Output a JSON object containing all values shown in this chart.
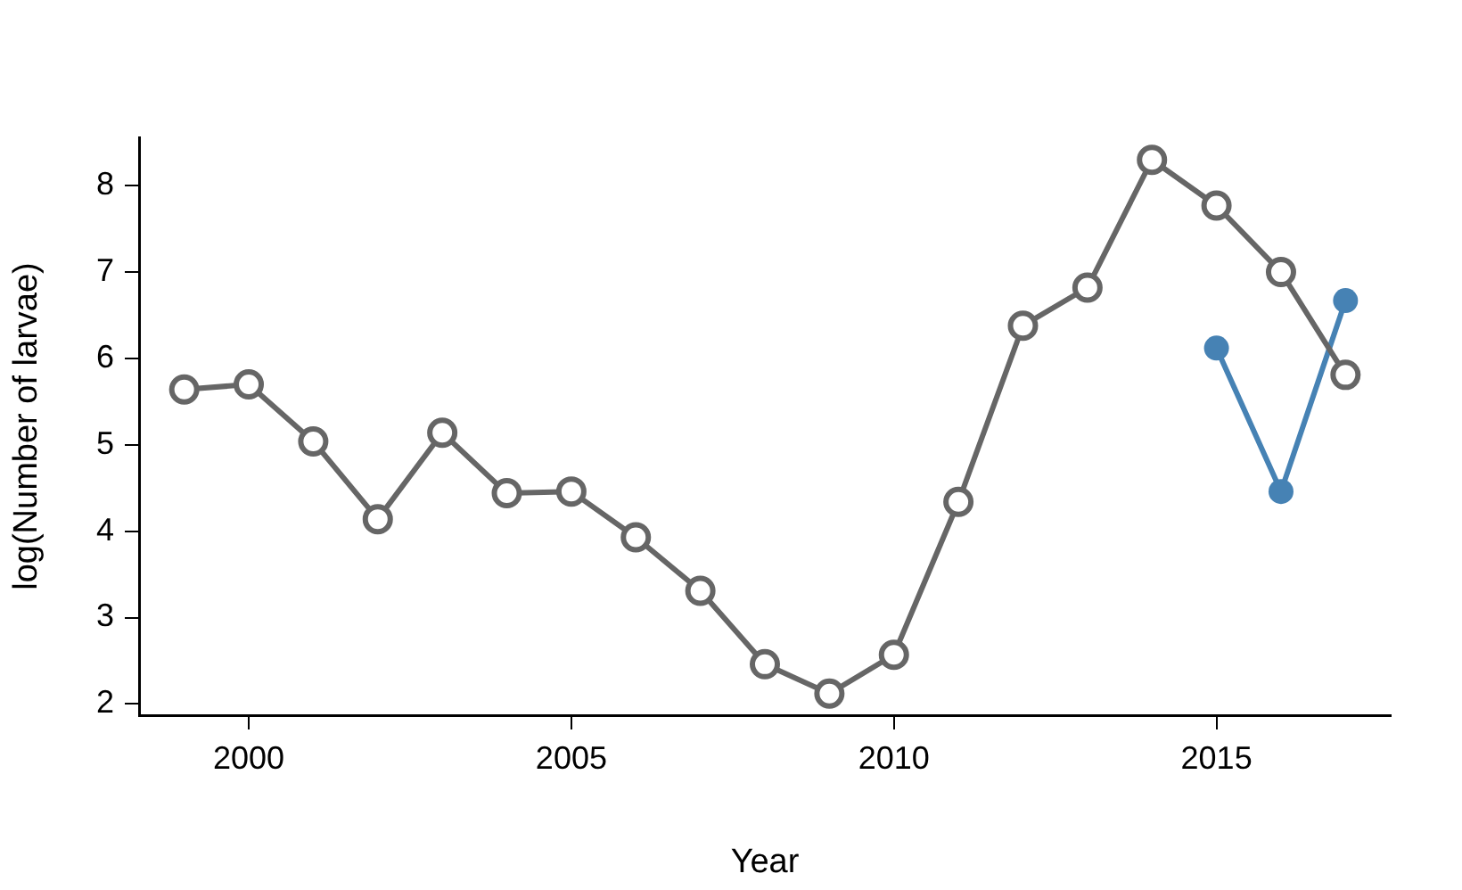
{
  "chart_data": {
    "type": "line",
    "xlabel": "Year",
    "ylabel": "log(Number of larvae)",
    "xlim": [
      1998.3,
      2017.7
    ],
    "ylim": [
      1.87,
      8.56
    ],
    "xticks": [
      2000,
      2005,
      2010,
      2015
    ],
    "yticks": [
      2,
      3,
      4,
      5,
      6,
      7,
      8
    ],
    "grid": false,
    "legend": false,
    "marker": "circle",
    "line_style": "solid",
    "series": [
      {
        "color": "#666666",
        "x": [
          1999,
          2000,
          2001,
          2002,
          2003,
          2004,
          2005,
          2006,
          2007,
          2008,
          2009,
          2010,
          2011,
          2012,
          2013,
          2014,
          2015,
          2016,
          2017
        ],
        "values": [
          5.64,
          5.7,
          5.04,
          4.14,
          5.14,
          4.44,
          4.46,
          3.93,
          3.31,
          2.46,
          2.12,
          2.57,
          4.34,
          6.38,
          6.82,
          8.3,
          7.77,
          7.0,
          5.81
        ]
      },
      {
        "color": "#4682b4",
        "x": [
          2015,
          2016,
          2017
        ],
        "values": [
          6.12,
          4.46,
          6.67
        ]
      }
    ]
  }
}
